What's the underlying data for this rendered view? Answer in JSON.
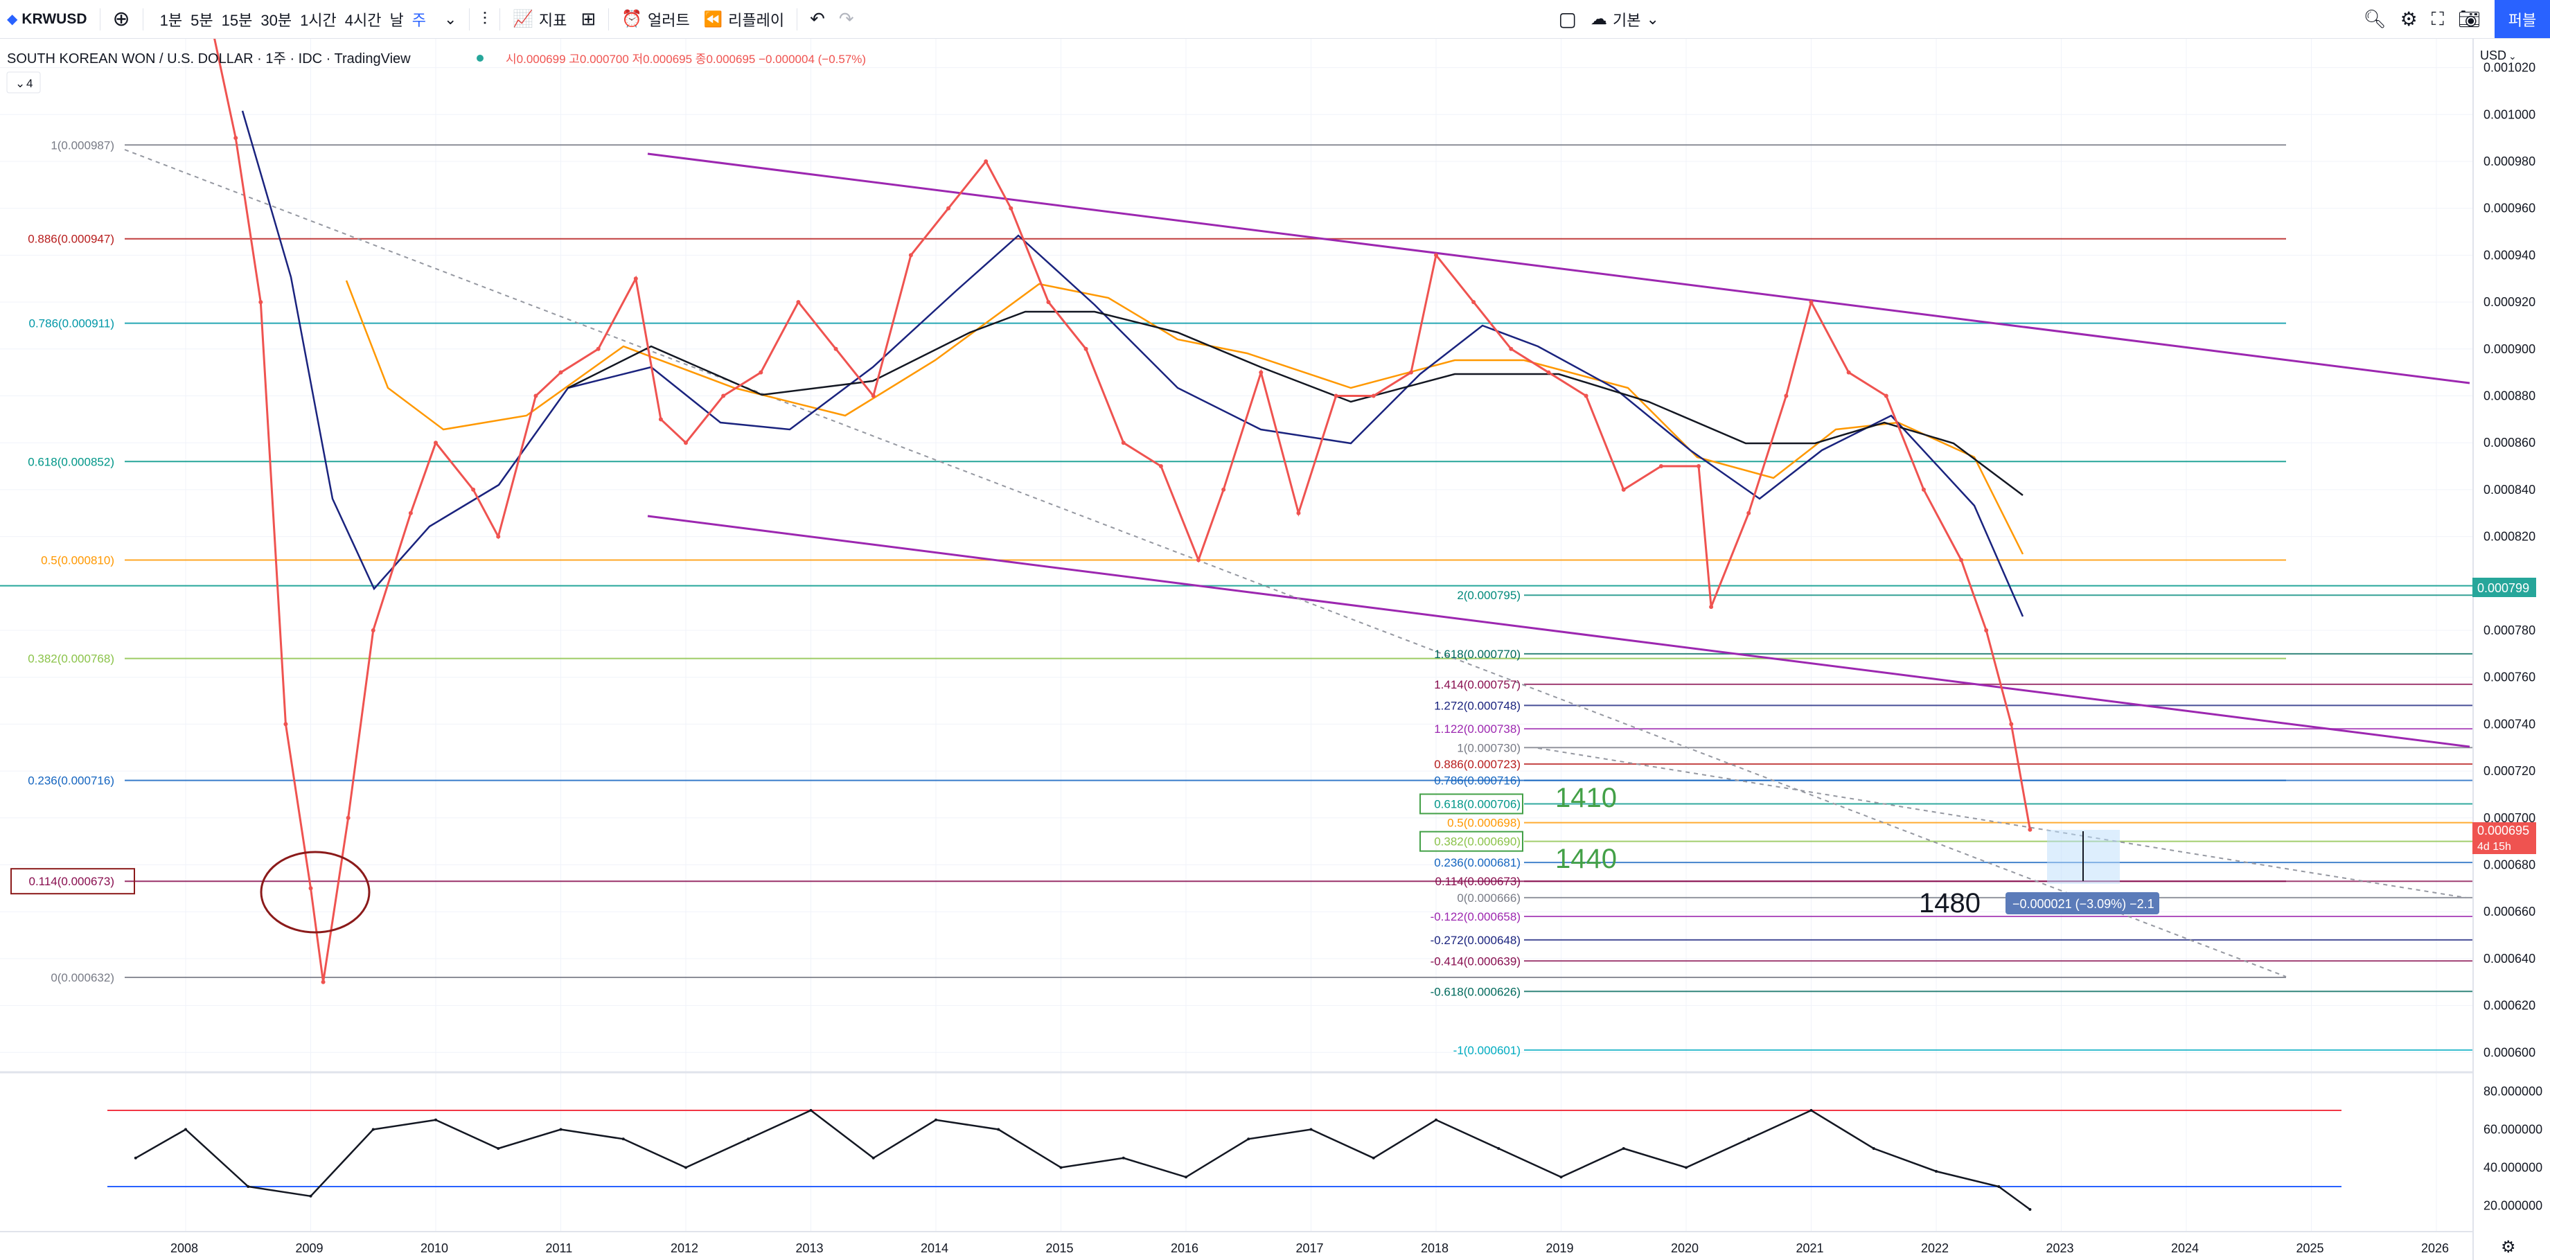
{
  "toolbar": {
    "symbol": "KRWUSD",
    "intervals": [
      "1분",
      "5분",
      "15분",
      "30분",
      "1시간",
      "4시간",
      "날",
      "주"
    ],
    "active_interval": "주",
    "indicators_label": "지표",
    "alert_label": "얼러트",
    "replay_label": "리플레이",
    "layout_label": "기본",
    "publish_label": "퍼블"
  },
  "legend": {
    "title": "SOUTH KOREAN WON / U.S. DOLLAR · 1주 · IDC · TradingView",
    "ohlc": "시0.000699 고0.000700 저0.000695 종0.000695 −0.000004 (−0.57%)",
    "count": "4"
  },
  "axis": {
    "currency": "USD",
    "price_ticks": [
      "0.001020",
      "0.001000",
      "0.000980",
      "0.000960",
      "0.000940",
      "0.000920",
      "0.000900",
      "0.000880",
      "0.000860",
      "0.000840",
      "0.000820",
      "0.000780",
      "0.000760",
      "0.000740",
      "0.000720",
      "0.000700",
      "0.000680",
      "0.000660",
      "0.000640",
      "0.000620",
      "0.000600"
    ],
    "price_tick_values": [
      0.00102,
      0.001,
      0.00098,
      0.00096,
      0.00094,
      0.00092,
      0.0009,
      0.00088,
      0.00086,
      0.00084,
      0.00082,
      0.00078,
      0.00076,
      0.00074,
      0.00072,
      0.0007,
      0.00068,
      0.00066,
      0.00064,
      0.00062,
      0.0006
    ],
    "rsi_ticks": [
      "80.000000",
      "60.000000",
      "40.000000",
      "20.000000"
    ],
    "rsi_tick_values": [
      80,
      60,
      40,
      20
    ],
    "years": [
      "2008",
      "2009",
      "2010",
      "2011",
      "2012",
      "2013",
      "2014",
      "2015",
      "2016",
      "2017",
      "2018",
      "2019",
      "2020",
      "2021",
      "2022",
      "2023",
      "2024",
      "2025",
      "2026"
    ]
  },
  "price_badges": {
    "level": "0.000799",
    "last": "0.000695",
    "countdown": "4d 15h"
  },
  "fib_left": [
    {
      "label": "1(0.000987)",
      "value": 0.000987,
      "color": "#787b86"
    },
    {
      "label": "0.886(0.000947)",
      "value": 0.000947,
      "color": "#b71c1c"
    },
    {
      "label": "0.786(0.000911)",
      "value": 0.000911,
      "color": "#0097a7"
    },
    {
      "label": "0.618(0.000852)",
      "value": 0.000852,
      "color": "#009688"
    },
    {
      "label": "0.5(0.000810)",
      "value": 0.00081,
      "color": "#ff9800"
    },
    {
      "label": "0.382(0.000768)",
      "value": 0.000768,
      "color": "#8bc34a"
    },
    {
      "label": "0.236(0.000716)",
      "value": 0.000716,
      "color": "#1565c0"
    },
    {
      "label": "0.114(0.000673)",
      "value": 0.000673,
      "color": "#880e4f"
    },
    {
      "label": "0(0.000632)",
      "value": 0.000632,
      "color": "#787b86"
    }
  ],
  "fib_right": [
    {
      "label": "2(0.000795)",
      "value": 0.000795,
      "color": "#00897b"
    },
    {
      "label": "1.618(0.000770)",
      "value": 0.00077,
      "color": "#00695c"
    },
    {
      "label": "1.414(0.000757)",
      "value": 0.000757,
      "color": "#880e4f"
    },
    {
      "label": "1.272(0.000748)",
      "value": 0.000748,
      "color": "#1a237e"
    },
    {
      "label": "1.122(0.000738)",
      "value": 0.000738,
      "color": "#9c27b0"
    },
    {
      "label": "1(0.000730)",
      "value": 0.00073,
      "color": "#787b86"
    },
    {
      "label": "0.886(0.000723)",
      "value": 0.000723,
      "color": "#b71c1c"
    },
    {
      "label": "0.786(0.000716)",
      "value": 0.000716,
      "color": "#1565c0"
    },
    {
      "label": "0.618(0.000706)",
      "value": 0.000706,
      "color": "#009688"
    },
    {
      "label": "0.5(0.000698)",
      "value": 0.000698,
      "color": "#ff9800"
    },
    {
      "label": "0.382(0.000690)",
      "value": 0.00069,
      "color": "#8bc34a"
    },
    {
      "label": "0.236(0.000681)",
      "value": 0.000681,
      "color": "#1565c0"
    },
    {
      "label": "0.114(0.000673)",
      "value": 0.000673,
      "color": "#880e4f"
    },
    {
      "label": "0(0.000666)",
      "value": 0.000666,
      "color": "#787b86"
    },
    {
      "label": "-0.122(0.000658)",
      "value": 0.000658,
      "color": "#9c27b0"
    },
    {
      "label": "-0.272(0.000648)",
      "value": 0.000648,
      "color": "#1a237e"
    },
    {
      "label": "-0.414(0.000639)",
      "value": 0.000639,
      "color": "#880e4f"
    },
    {
      "label": "-0.618(0.000626)",
      "value": 0.000626,
      "color": "#00695c"
    },
    {
      "label": "-1(0.000601)",
      "value": 0.000601,
      "color": "#00acc1"
    }
  ],
  "annotations": {
    "a1410": "1410",
    "a1440": "1440",
    "a1480": "1480",
    "measure": "−0.000021 (−3.09%) −2.1"
  },
  "chart_data": {
    "type": "line",
    "x": [
      2007.6,
      2007.9,
      2008.2,
      2008.4,
      2008.6,
      2008.8,
      2009.0,
      2009.1,
      2009.3,
      2009.5,
      2009.8,
      2010.0,
      2010.3,
      2010.5,
      2010.8,
      2011.0,
      2011.3,
      2011.6,
      2011.8,
      2012.0,
      2012.3,
      2012.6,
      2012.9,
      2013.2,
      2013.5,
      2013.8,
      2014.1,
      2014.4,
      2014.6,
      2014.9,
      2015.2,
      2015.5,
      2015.8,
      2016.1,
      2016.3,
      2016.6,
      2016.9,
      2017.2,
      2017.5,
      2017.8,
      2018.0,
      2018.3,
      2018.6,
      2018.9,
      2019.2,
      2019.5,
      2019.8,
      2020.1,
      2020.2,
      2020.5,
      2020.8,
      2021.0,
      2021.3,
      2021.6,
      2021.9,
      2022.2,
      2022.4,
      2022.6,
      2022.75
    ],
    "series": [
      {
        "values": [
          0.00108,
          0.00107,
          0.00104,
          0.00099,
          0.00092,
          0.00074,
          0.00067,
          0.00063,
          0.0007,
          0.00078,
          0.00083,
          0.00086,
          0.00084,
          0.00082,
          0.00088,
          0.00089,
          0.0009,
          0.00093,
          0.00087,
          0.00086,
          0.00088,
          0.00089,
          0.00092,
          0.0009,
          0.00088,
          0.00094,
          0.00096,
          0.00098,
          0.00096,
          0.00092,
          0.0009,
          0.00086,
          0.00085,
          0.00081,
          0.00084,
          0.00089,
          0.00083,
          0.00088,
          0.00088,
          0.00089,
          0.00094,
          0.00092,
          0.0009,
          0.00089,
          0.00088,
          0.00084,
          0.00085,
          0.00085,
          0.00079,
          0.00083,
          0.00088,
          0.00092,
          0.00089,
          0.00088,
          0.00084,
          0.00081,
          0.00078,
          0.00074,
          0.000695
        ]
      }
    ],
    "rsi": {
      "overbought": 70,
      "oversold": 30,
      "x": [
        2007.6,
        2008.0,
        2008.5,
        2009.0,
        2009.5,
        2010.0,
        2010.5,
        2011.0,
        2011.5,
        2012.0,
        2012.5,
        2013.0,
        2013.5,
        2014.0,
        2014.5,
        2015.0,
        2015.5,
        2016.0,
        2016.5,
        2017.0,
        2017.5,
        2018.0,
        2018.5,
        2019.0,
        2019.5,
        2020.0,
        2020.5,
        2021.0,
        2021.5,
        2022.0,
        2022.5,
        2022.75
      ],
      "values": [
        45,
        60,
        30,
        25,
        60,
        65,
        50,
        60,
        55,
        40,
        55,
        70,
        45,
        65,
        60,
        40,
        45,
        35,
        55,
        60,
        45,
        65,
        50,
        35,
        50,
        40,
        55,
        70,
        50,
        38,
        30,
        18
      ]
    }
  }
}
